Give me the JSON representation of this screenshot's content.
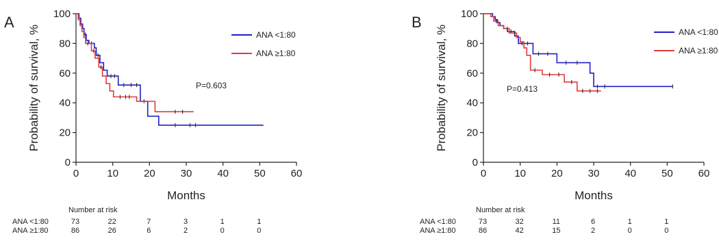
{
  "chart_data": [
    {
      "type": "line",
      "panel_label": "A",
      "title": "",
      "xlabel": "Months",
      "ylabel": "Probability of survival, %",
      "xlim": [
        0,
        60
      ],
      "ylim": [
        0,
        100
      ],
      "xticks": [
        0,
        10,
        20,
        30,
        40,
        50,
        60
      ],
      "yticks": [
        0,
        20,
        40,
        60,
        80,
        100
      ],
      "grid": false,
      "legend_position": "top-right",
      "annotation": "P=0.603",
      "series": [
        {
          "name": "ANA <1:80",
          "color": "#1f1fc8",
          "points": [
            [
              0,
              100
            ],
            [
              0.8,
              100
            ],
            [
              0.8,
              97
            ],
            [
              1.3,
              97
            ],
            [
              1.3,
              93
            ],
            [
              1.8,
              93
            ],
            [
              1.8,
              90
            ],
            [
              2.2,
              90
            ],
            [
              2.2,
              86
            ],
            [
              2.8,
              86
            ],
            [
              2.8,
              82
            ],
            [
              3.5,
              82
            ],
            [
              3.5,
              80
            ],
            [
              5,
              80
            ],
            [
              5,
              77
            ],
            [
              5.5,
              77
            ],
            [
              5.5,
              72
            ],
            [
              6.5,
              72
            ],
            [
              6.5,
              67
            ],
            [
              7.5,
              67
            ],
            [
              7.5,
              62
            ],
            [
              8.5,
              62
            ],
            [
              8.5,
              58
            ],
            [
              11.5,
              58
            ],
            [
              11.5,
              52
            ],
            [
              17.5,
              52
            ],
            [
              17.5,
              41
            ],
            [
              19.5,
              41
            ],
            [
              19.5,
              31
            ],
            [
              22.5,
              31
            ],
            [
              22.5,
              25
            ],
            [
              51,
              25
            ]
          ],
          "censored": [
            [
              2.5,
              86
            ],
            [
              4.2,
              80
            ],
            [
              6,
              72
            ],
            [
              9.5,
              58
            ],
            [
              10.5,
              58
            ],
            [
              13,
              52
            ],
            [
              15,
              52
            ],
            [
              16.5,
              52
            ],
            [
              18.5,
              41
            ],
            [
              27,
              25
            ],
            [
              31,
              25
            ],
            [
              32.5,
              25
            ]
          ]
        },
        {
          "name": "ANA ≥1:80",
          "color": "#e03a3a",
          "points": [
            [
              0,
              100
            ],
            [
              0.6,
              100
            ],
            [
              0.6,
              96
            ],
            [
              1.1,
              96
            ],
            [
              1.1,
              92
            ],
            [
              1.6,
              92
            ],
            [
              1.6,
              88
            ],
            [
              2.1,
              88
            ],
            [
              2.1,
              84
            ],
            [
              2.6,
              84
            ],
            [
              2.6,
              80
            ],
            [
              4.2,
              80
            ],
            [
              4.2,
              75
            ],
            [
              5.2,
              75
            ],
            [
              5.2,
              70
            ],
            [
              6.2,
              70
            ],
            [
              6.2,
              64
            ],
            [
              7.2,
              64
            ],
            [
              7.2,
              58
            ],
            [
              8.2,
              58
            ],
            [
              8.2,
              53
            ],
            [
              9.2,
              53
            ],
            [
              9.2,
              48
            ],
            [
              10.2,
              48
            ],
            [
              10.2,
              44
            ],
            [
              16.5,
              44
            ],
            [
              16.5,
              41
            ],
            [
              21.5,
              41
            ],
            [
              21.5,
              34
            ],
            [
              32,
              34
            ]
          ],
          "censored": [
            [
              3.2,
              80
            ],
            [
              4.8,
              75
            ],
            [
              6.8,
              64
            ],
            [
              12,
              44
            ],
            [
              13.5,
              44
            ],
            [
              14.5,
              44
            ],
            [
              27,
              34
            ],
            [
              29,
              34
            ]
          ]
        }
      ],
      "risk_table": {
        "header": "Number at risk",
        "rows": [
          {
            "label": "ANA <1:80",
            "values": [
              "73",
              "22",
              "7",
              "3",
              "1",
              "1"
            ]
          },
          {
            "label": "ANA ≥1:80",
            "values": [
              "86",
              "26",
              "6",
              "2",
              "0",
              "0"
            ]
          }
        ]
      }
    },
    {
      "type": "line",
      "panel_label": "B",
      "title": "",
      "xlabel": "Months",
      "ylabel": "Probability of survival, %",
      "xlim": [
        0,
        60
      ],
      "ylim": [
        0,
        100
      ],
      "xticks": [
        0,
        10,
        20,
        30,
        40,
        50,
        60
      ],
      "yticks": [
        0,
        20,
        40,
        60,
        80,
        100
      ],
      "grid": false,
      "legend_position": "top-right",
      "annotation": "P=0.413",
      "series": [
        {
          "name": "ANA <1:80",
          "color": "#1f1fc8",
          "points": [
            [
              0,
              100
            ],
            [
              2.5,
              100
            ],
            [
              2.5,
              98
            ],
            [
              3.2,
              98
            ],
            [
              3.2,
              96
            ],
            [
              3.8,
              96
            ],
            [
              3.8,
              94
            ],
            [
              4.5,
              94
            ],
            [
              4.5,
              92
            ],
            [
              5.5,
              92
            ],
            [
              5.5,
              90
            ],
            [
              6.5,
              90
            ],
            [
              6.5,
              88
            ],
            [
              8.5,
              88
            ],
            [
              8.5,
              85
            ],
            [
              9.5,
              85
            ],
            [
              9.5,
              80
            ],
            [
              13.5,
              80
            ],
            [
              13.5,
              73
            ],
            [
              20,
              73
            ],
            [
              20,
              67
            ],
            [
              29,
              67
            ],
            [
              29,
              60
            ],
            [
              30,
              60
            ],
            [
              30,
              51
            ],
            [
              51.5,
              51
            ]
          ],
          "censored": [
            [
              4,
              94
            ],
            [
              7.5,
              88
            ],
            [
              10.5,
              80
            ],
            [
              12,
              80
            ],
            [
              15,
              73
            ],
            [
              17.5,
              73
            ],
            [
              22.5,
              67
            ],
            [
              25.5,
              67
            ],
            [
              31,
              51
            ],
            [
              33,
              51
            ],
            [
              51.5,
              51
            ]
          ]
        },
        {
          "name": "ANA ≥1:80",
          "color": "#e03a3a",
          "points": [
            [
              0,
              100
            ],
            [
              2,
              100
            ],
            [
              2,
              98
            ],
            [
              2.8,
              98
            ],
            [
              2.8,
              95
            ],
            [
              4,
              95
            ],
            [
              4,
              92
            ],
            [
              5.5,
              92
            ],
            [
              5.5,
              90
            ],
            [
              7,
              90
            ],
            [
              7,
              87
            ],
            [
              9,
              87
            ],
            [
              9,
              84
            ],
            [
              10,
              84
            ],
            [
              10,
              81
            ],
            [
              11,
              81
            ],
            [
              11,
              77
            ],
            [
              11.8,
              77
            ],
            [
              11.8,
              72
            ],
            [
              12.8,
              72
            ],
            [
              12.8,
              62
            ],
            [
              16,
              62
            ],
            [
              16,
              59
            ],
            [
              22,
              59
            ],
            [
              22,
              54
            ],
            [
              25.5,
              54
            ],
            [
              25.5,
              48
            ],
            [
              32,
              48
            ]
          ],
          "censored": [
            [
              3.5,
              95
            ],
            [
              6.5,
              90
            ],
            [
              8.5,
              87
            ],
            [
              14,
              62
            ],
            [
              18,
              59
            ],
            [
              20.5,
              59
            ],
            [
              24,
              54
            ],
            [
              27,
              48
            ],
            [
              29,
              48
            ],
            [
              31,
              48
            ]
          ]
        }
      ],
      "risk_table": {
        "header": "Number at risk",
        "rows": [
          {
            "label": "ANA <1:80",
            "values": [
              "73",
              "32",
              "11",
              "6",
              "1",
              "1"
            ]
          },
          {
            "label": "ANA ≥1:80",
            "values": [
              "86",
              "42",
              "15",
              "2",
              "0",
              "0"
            ]
          }
        ]
      }
    }
  ]
}
